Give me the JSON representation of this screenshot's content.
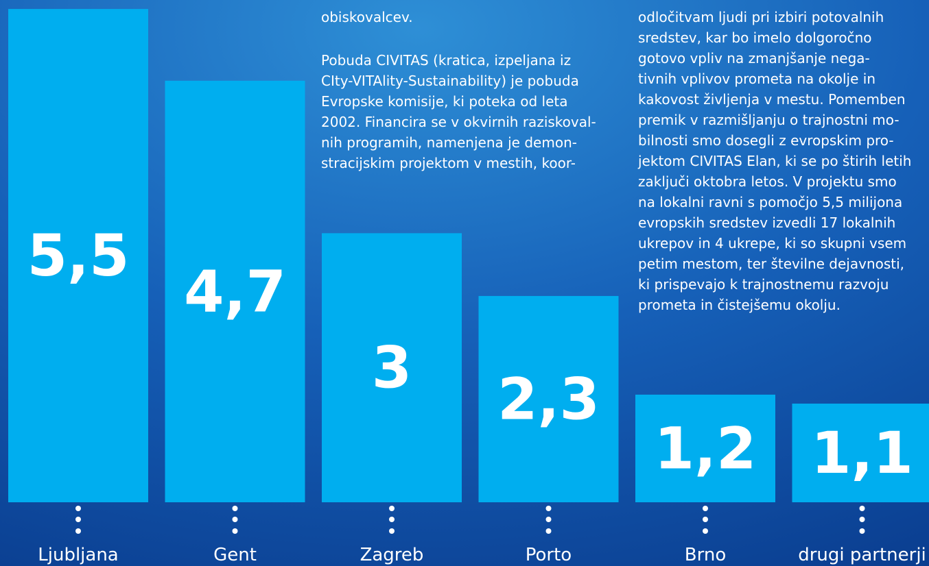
{
  "chart_data": {
    "type": "bar",
    "categories": [
      "Ljubljana",
      "Gent",
      "Zagreb",
      "Porto",
      "Brno",
      "drugi partnerji"
    ],
    "values": [
      5.5,
      4.7,
      3,
      2.3,
      1.2,
      1.1
    ],
    "value_labels": [
      "5,5",
      "4,7",
      "3",
      "2,3",
      "1,2",
      "1,1"
    ],
    "color": "#00aeef",
    "ylim": [
      0,
      5.6
    ],
    "annotations": [
      [
        "obiskovalcev.",
        "Pobuda CIVITAS (kratica, izpeljana iz",
        "CIty-VITAlity-Sustainability) je pobuda",
        "Evropske komisije, ki poteka od leta",
        "2002. Financira se v okvirnih raziskoval-",
        "nih programih, namenjena je demon-",
        "stracijskim projektom v mestih, koor-"
      ],
      [
        "odločitvam ljudi pri izbiri potovalnih",
        "sredstev, kar bo imelo dolgoročno",
        "gotovo vpliv na zmanjšanje nega-",
        "tivnih vplivov prometa na okolje in",
        "kakovost življenja v mestu. Pomemben",
        "premik v razmišljanju o trajnostni mo-",
        "bilnosti smo dosegli z evropskim pro-",
        "jektom CIVITAS Elan, ki se po štirih letih",
        "zaključi oktobra letos. V projektu smo",
        "na lokalni ravni s pomočjo 5,5 milijona",
        "evropskih sredstev izvedli 17 lokalnih",
        "ukrepov in 4 ukrepe, ki so skupni vsem",
        "petim mestom, ter številne dejavnosti,",
        "ki prispevajo k trajnostnemu razvoju",
        "prometa in čistejšemu okolju."
      ]
    ]
  }
}
